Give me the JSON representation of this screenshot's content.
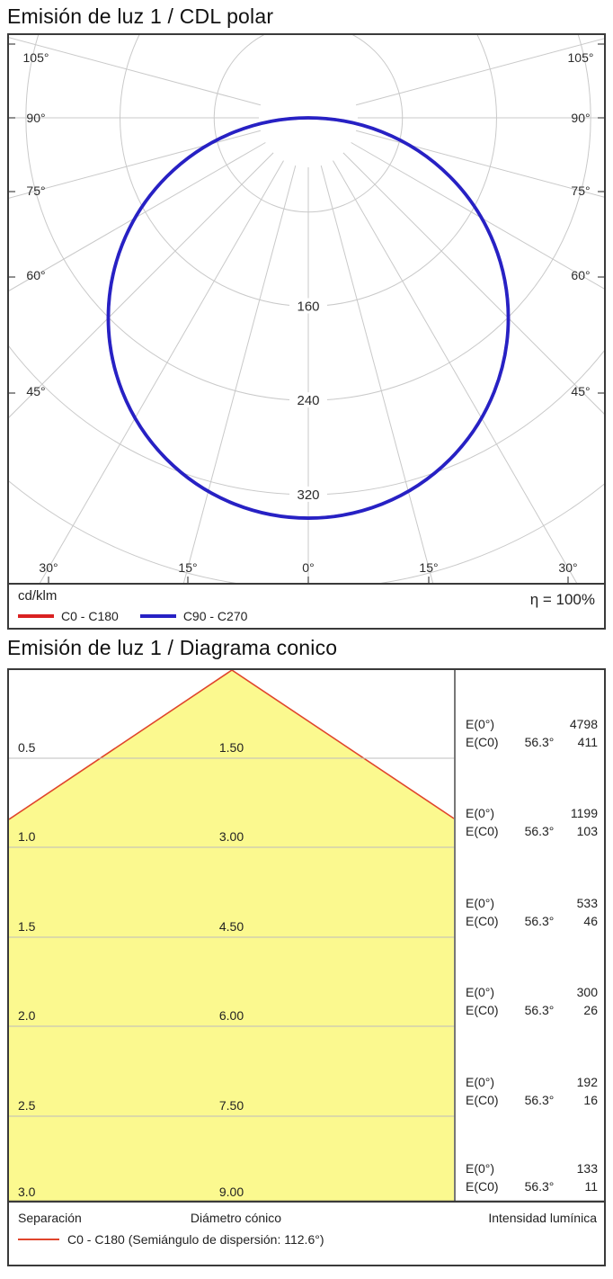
{
  "section1": {
    "title": "Emisión de luz 1 / CDL polar",
    "unit_label": "cd/klm",
    "efficiency_label": "η = 100%",
    "legend": [
      {
        "label": "C0 - C180",
        "color": "#d92121"
      },
      {
        "label": "C90 - C270",
        "color": "#2721c4"
      }
    ]
  },
  "section2": {
    "title": "Emisión de luz 1 / Diagrama conico",
    "footer": {
      "separation_label": "Separación",
      "diameter_label": "Diámetro cónico",
      "intensity_label": "Intensidad lumínica",
      "legend_label": "C0 - C180 (Semiángulo de dispersión: 112.6°)",
      "legend_color": "#e0452c"
    }
  },
  "chart_data": [
    {
      "type": "line",
      "subtype": "polar-intensity-diagram",
      "title": "Emisión de luz 1 / CDL polar",
      "units": "cd/klm",
      "efficiency": "η = 100%",
      "grid": true,
      "angle_grid_step_deg": 15,
      "angle_grid_max_deg": 105,
      "angle_labels_side": [
        "105°",
        "90°",
        "75°",
        "60°",
        "45°"
      ],
      "angle_labels_bottom": [
        "30°",
        "15°",
        "0°",
        "15°",
        "30°"
      ],
      "ring_values": [
        80,
        160,
        240,
        320,
        400
      ],
      "ring_labels": [
        "160",
        "240",
        "320"
      ],
      "grid_color": "#c9c9c9",
      "series": [
        {
          "name": "C0 - C180",
          "color": "#d92121",
          "shape": "circle-through-pole",
          "peak_cd_per_klm": 340,
          "gamma_deg": [
            0,
            15,
            30,
            45,
            60,
            75,
            90
          ],
          "intensity_cd_per_klm": [
            340,
            328,
            294,
            240,
            170,
            88,
            0
          ]
        },
        {
          "name": "C90 - C270",
          "color": "#2721c4",
          "shape": "circle-through-pole",
          "peak_cd_per_klm": 340,
          "gamma_deg": [
            0,
            15,
            30,
            45,
            60,
            75,
            90
          ],
          "intensity_cd_per_klm": [
            340,
            328,
            294,
            240,
            170,
            88,
            0
          ]
        }
      ]
    },
    {
      "type": "area",
      "subtype": "cone-diagram",
      "title": "Emisión de luz 1 / Diagrama conico",
      "beam_semiangle_deg": 56.3,
      "dispersion_semiangle_label": "112.6°",
      "colors": {
        "fill": "#fbf98f",
        "edge": "#e0452c"
      },
      "e0_label": "E(0°)",
      "ec0_label": "E(C0)",
      "rows": [
        {
          "separation": "0.5",
          "diameter": "1.50",
          "e0": "4798",
          "angle": "56.3°",
          "ec0": "411"
        },
        {
          "separation": "1.0",
          "diameter": "3.00",
          "e0": "1199",
          "angle": "56.3°",
          "ec0": "103"
        },
        {
          "separation": "1.5",
          "diameter": "4.50",
          "e0": "533",
          "angle": "56.3°",
          "ec0": "46"
        },
        {
          "separation": "2.0",
          "diameter": "6.00",
          "e0": "300",
          "angle": "56.3°",
          "ec0": "26"
        },
        {
          "separation": "2.5",
          "diameter": "7.50",
          "e0": "192",
          "angle": "56.3°",
          "ec0": "16"
        },
        {
          "separation": "3.0",
          "diameter": "9.00",
          "e0": "133",
          "angle": "56.3°",
          "ec0": "11"
        }
      ]
    }
  ]
}
